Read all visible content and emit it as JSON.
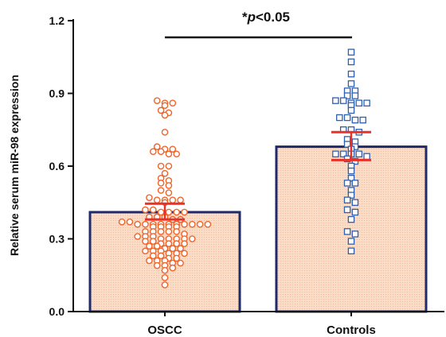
{
  "chart_data": {
    "type": "bar",
    "title": "",
    "xlabel": "",
    "ylabel": "Relative serum miR-98 expression",
    "ylim": [
      0,
      1.2
    ],
    "yticks": [
      0.0,
      0.3,
      0.6,
      0.9,
      1.2
    ],
    "ytick_labels": [
      "0.0",
      "0.3",
      "0.6",
      "0.9",
      "1.2"
    ],
    "grid": false,
    "legend": "none",
    "categories": [
      "OSCC",
      "Controls"
    ],
    "values": [
      0.41,
      0.68
    ],
    "error_bars": [
      {
        "lower": 0.38,
        "upper": 0.445
      },
      {
        "lower": 0.625,
        "upper": 0.74
      }
    ],
    "significance": {
      "prefix": "*",
      "p_symbol": "p",
      "suffix": "<0.05",
      "between": [
        "OSCC",
        "Controls"
      ]
    },
    "points": [
      {
        "category": "OSCC",
        "marker": "circle",
        "values": [
          0.87,
          0.86,
          0.86,
          0.85,
          0.83,
          0.82,
          0.81,
          0.74,
          0.68,
          0.67,
          0.67,
          0.66,
          0.66,
          0.65,
          0.65,
          0.6,
          0.6,
          0.57,
          0.55,
          0.54,
          0.53,
          0.52,
          0.5,
          0.49,
          0.47,
          0.46,
          0.46,
          0.46,
          0.46,
          0.45,
          0.42,
          0.42,
          0.41,
          0.41,
          0.41,
          0.41,
          0.39,
          0.39,
          0.39,
          0.38,
          0.38,
          0.37,
          0.37,
          0.36,
          0.36,
          0.36,
          0.36,
          0.36,
          0.36,
          0.36,
          0.36,
          0.36,
          0.36,
          0.35,
          0.35,
          0.35,
          0.35,
          0.33,
          0.33,
          0.33,
          0.33,
          0.33,
          0.32,
          0.31,
          0.31,
          0.31,
          0.3,
          0.3,
          0.3,
          0.3,
          0.3,
          0.29,
          0.29,
          0.28,
          0.28,
          0.28,
          0.28,
          0.27,
          0.27,
          0.26,
          0.26,
          0.26,
          0.25,
          0.25,
          0.25,
          0.24,
          0.24,
          0.24,
          0.23,
          0.23,
          0.22,
          0.22,
          0.21,
          0.21,
          0.21,
          0.2,
          0.2,
          0.19,
          0.19,
          0.18,
          0.17,
          0.14,
          0.11
        ]
      },
      {
        "category": "Controls",
        "marker": "square",
        "values": [
          1.07,
          1.03,
          0.98,
          0.94,
          0.91,
          0.91,
          0.89,
          0.89,
          0.87,
          0.87,
          0.86,
          0.86,
          0.86,
          0.85,
          0.83,
          0.8,
          0.8,
          0.79,
          0.79,
          0.75,
          0.75,
          0.74,
          0.71,
          0.7,
          0.69,
          0.68,
          0.67,
          0.65,
          0.65,
          0.65,
          0.65,
          0.64,
          0.63,
          0.62,
          0.6,
          0.58,
          0.55,
          0.53,
          0.53,
          0.5,
          0.48,
          0.46,
          0.45,
          0.42,
          0.41,
          0.38,
          0.33,
          0.32,
          0.29,
          0.25
        ]
      }
    ],
    "colors": {
      "bar_fill": "#fbdcc6",
      "bar_border": "#1f2a6b",
      "osscc_points": "#f0642a",
      "controls_points": "#2e5fae",
      "error_bars": "#e8312a",
      "axis": "#111111"
    }
  }
}
